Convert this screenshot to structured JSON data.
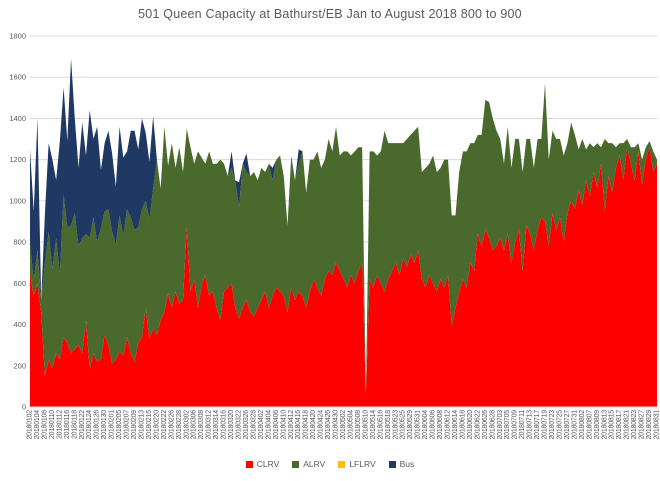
{
  "title": "501 Queen Capacity at Bathurst/EB Jan to August 2018 800 to 900",
  "chart_data": {
    "type": "area",
    "stacked": true,
    "title": "501 Queen Capacity at Bathurst/EB Jan to August 2018 800 to 900",
    "xlabel": "",
    "ylabel": "",
    "ylim": [
      0,
      1800
    ],
    "yticks": [
      0,
      200,
      400,
      600,
      800,
      1000,
      1200,
      1400,
      1600,
      1800
    ],
    "grid": true,
    "grid_color": "#D9D9D9",
    "text_color": "#595959",
    "legend_position": "bottom",
    "x_label_every": 2,
    "x": [
      "20180102",
      "20180103",
      "20180104",
      "20180105",
      "20180108",
      "20180109",
      "20180110",
      "20180111",
      "20180112",
      "20180115",
      "20180116",
      "20180117",
      "20180118",
      "20180119",
      "20180122",
      "20180123",
      "20180124",
      "20180125",
      "20180126",
      "20180129",
      "20180130",
      "20180131",
      "20180201",
      "20180202",
      "20180205",
      "20180206",
      "20180207",
      "20180208",
      "20180209",
      "20180212",
      "20180213",
      "20180214",
      "20180215",
      "20180216",
      "20180220",
      "20180221",
      "20180222",
      "20180223",
      "20180226",
      "20180227",
      "20180228",
      "20180301",
      "20180302",
      "20180305",
      "20180306",
      "20180307",
      "20180308",
      "20180309",
      "20180312",
      "20180313",
      "20180314",
      "20180315",
      "20180316",
      "20180319",
      "20180320",
      "20180321",
      "20180322",
      "20180323",
      "20180326",
      "20180327",
      "20180328",
      "20180329",
      "20180402",
      "20180403",
      "20180404",
      "20180405",
      "20180406",
      "20180409",
      "20180410",
      "20180411",
      "20180412",
      "20180413",
      "20180416",
      "20180417",
      "20180418",
      "20180419",
      "20180420",
      "20180423",
      "20180424",
      "20180425",
      "20180426",
      "20180427",
      "20180430",
      "20180501",
      "20180502",
      "20180503",
      "20180504",
      "20180507",
      "20180508",
      "20180509",
      "20180510",
      "20180511",
      "20180514",
      "20180515",
      "20180516",
      "20180517",
      "20180518",
      "20180522",
      "20180523",
      "20180524",
      "20180525",
      "20180528",
      "20180529",
      "20180530",
      "20180531",
      "20180601",
      "20180604",
      "20180605",
      "20180606",
      "20180607",
      "20180608",
      "20180611",
      "20180612",
      "20180613",
      "20180614",
      "20180615",
      "20180618",
      "20180619",
      "20180620",
      "20180621",
      "20180622",
      "20180625",
      "20180626",
      "20180627",
      "20180628",
      "20180629",
      "20180703",
      "20180704",
      "20180705",
      "20180706",
      "20180709",
      "20180710",
      "20180711",
      "20180712",
      "20180713",
      "20180716",
      "20180717",
      "20180718",
      "20180719",
      "20180720",
      "20180723",
      "20180724",
      "20180725",
      "20180726",
      "20180727",
      "20180730",
      "20180731",
      "20180801",
      "20180802",
      "20180803",
      "20180807",
      "20180808",
      "20180809",
      "20180810",
      "20180813",
      "20180814",
      "20180815",
      "20180816",
      "20180817",
      "20180820",
      "20180821",
      "20180822",
      "20180823",
      "20180824",
      "20180827",
      "20180828",
      "20180829",
      "20180830",
      "20180831"
    ],
    "series": [
      {
        "name": "CLRV",
        "color": "#FF0000",
        "values": [
          650,
          540,
          600,
          460,
          150,
          230,
          190,
          260,
          230,
          340,
          310,
          260,
          280,
          300,
          260,
          420,
          180,
          260,
          220,
          230,
          350,
          300,
          210,
          230,
          270,
          250,
          340,
          260,
          220,
          310,
          340,
          480,
          330,
          380,
          350,
          420,
          460,
          550,
          480,
          560,
          500,
          520,
          870,
          560,
          620,
          480,
          590,
          640,
          540,
          560,
          480,
          420,
          560,
          580,
          600,
          480,
          430,
          480,
          520,
          460,
          440,
          480,
          520,
          560,
          480,
          540,
          580,
          560,
          540,
          460,
          580,
          520,
          560,
          540,
          480,
          560,
          620,
          580,
          540,
          620,
          660,
          640,
          700,
          660,
          620,
          580,
          640,
          600,
          660,
          700,
          60,
          620,
          580,
          640,
          600,
          560,
          620,
          660,
          700,
          640,
          720,
          680,
          740,
          700,
          760,
          620,
          580,
          640,
          600,
          560,
          620,
          580,
          640,
          390,
          480,
          560,
          620,
          580,
          700,
          660,
          840,
          780,
          860,
          820,
          760,
          780,
          820,
          760,
          840,
          700,
          800,
          860,
          660,
          880,
          840,
          760,
          860,
          920,
          900,
          780,
          940,
          860,
          920,
          800,
          940,
          1000,
          960,
          1050,
          980,
          1100,
          1020,
          1140,
          1060,
          1180,
          950,
          1120,
          1040,
          1160,
          1220,
          1100,
          1260,
          1180,
          1100,
          1240,
          1080,
          1200,
          1260,
          1140,
          1180
        ]
      },
      {
        "name": "ALRV",
        "color": "#4A6A2D",
        "values": [
          140,
          80,
          160,
          60,
          550,
          620,
          480,
          560,
          420,
          690,
          560,
          620,
          660,
          480,
          560,
          420,
          640,
          660,
          580,
          640,
          600,
          660,
          640,
          560,
          660,
          580,
          620,
          660,
          640,
          560,
          620,
          520,
          580,
          680,
          850,
          640,
          900,
          620,
          800,
          600,
          760,
          620,
          480,
          700,
          560,
          760,
          620,
          540,
          700,
          620,
          700,
          780,
          620,
          540,
          560,
          620,
          540,
          700,
          620,
          660,
          700,
          620,
          640,
          580,
          700,
          560,
          620,
          660,
          580,
          420,
          640,
          580,
          620,
          700,
          560,
          640,
          580,
          660,
          620,
          580,
          640,
          600,
          660,
          560,
          620,
          660,
          580,
          640,
          600,
          560,
          0,
          620,
          660,
          580,
          640,
          780,
          660,
          620,
          580,
          640,
          560,
          620,
          580,
          640,
          600,
          520,
          580,
          540,
          620,
          580,
          540,
          620,
          560,
          540,
          450,
          580,
          620,
          660,
          580,
          620,
          480,
          540,
          630,
          660,
          640,
          560,
          480,
          420,
          520,
          460,
          500,
          440,
          480,
          420,
          460,
          400,
          440,
          380,
          670,
          420,
          400,
          440,
          380,
          420,
          340,
          380,
          360,
          200,
          320,
          150,
          260,
          120,
          220,
          80,
          350,
          160,
          240,
          100,
          60,
          180,
          40,
          80,
          160,
          40,
          120,
          60,
          30,
          100,
          20
        ]
      },
      {
        "name": "LFLRV",
        "color": "#FFC000",
        "values": [
          0,
          0,
          0,
          0,
          0,
          0,
          0,
          0,
          0,
          0,
          0,
          0,
          0,
          0,
          0,
          0,
          0,
          0,
          0,
          0,
          0,
          0,
          0,
          0,
          0,
          0,
          0,
          0,
          0,
          0,
          0,
          0,
          0,
          0,
          0,
          0,
          0,
          0,
          0,
          0,
          0,
          0,
          0,
          0,
          0,
          0,
          0,
          0,
          0,
          0,
          0,
          0,
          0,
          0,
          0,
          0,
          0,
          0,
          0,
          0,
          0,
          0,
          0,
          0,
          0,
          0,
          0,
          0,
          0,
          0,
          0,
          0,
          0,
          0,
          0,
          0,
          0,
          0,
          0,
          0,
          0,
          0,
          0,
          0,
          0,
          0,
          0,
          0,
          0,
          0,
          0,
          0,
          0,
          0,
          0,
          0,
          0,
          0,
          0,
          0,
          0,
          0,
          0,
          0,
          0,
          0,
          0,
          0,
          0,
          0,
          0,
          0,
          0,
          0,
          0,
          0,
          0,
          0,
          0,
          0,
          0,
          0,
          0,
          0,
          0,
          0,
          0,
          0,
          0,
          0,
          0,
          0,
          0,
          0,
          0,
          0,
          0,
          0,
          0,
          0,
          0,
          0,
          0,
          0,
          0,
          0,
          0,
          0,
          0,
          0,
          0,
          0,
          0,
          0,
          0,
          0,
          0,
          0,
          0,
          0,
          0,
          0,
          0,
          0,
          0,
          0,
          0,
          0,
          0
        ]
      },
      {
        "name": "Bus",
        "color": "#1F3864",
        "values": [
          460,
          330,
          640,
          0,
          240,
          430,
          530,
          280,
          640,
          520,
          420,
          810,
          460,
          380,
          560,
          380,
          620,
          380,
          560,
          280,
          330,
          380,
          380,
          280,
          430,
          380,
          280,
          420,
          480,
          380,
          440,
          330,
          280,
          350,
          0,
          0,
          0,
          0,
          0,
          0,
          0,
          0,
          0,
          0,
          0,
          0,
          0,
          0,
          0,
          0,
          0,
          0,
          0,
          0,
          80,
          0,
          120,
          0,
          90,
          0,
          0,
          0,
          0,
          0,
          0,
          60,
          0,
          0,
          0,
          0,
          0,
          0,
          70,
          0,
          0,
          0,
          0,
          0,
          0,
          0,
          0,
          0,
          0,
          0,
          0,
          0,
          0,
          0,
          0,
          0,
          0,
          0,
          0,
          0,
          0,
          0,
          0,
          0,
          0,
          0,
          0,
          0,
          0,
          0,
          0,
          0,
          0,
          0,
          0,
          0,
          0,
          0,
          0,
          0,
          0,
          0,
          0,
          0,
          0,
          0,
          0,
          0,
          0,
          0,
          0,
          0,
          0,
          0,
          0,
          0,
          0,
          0,
          0,
          0,
          0,
          0,
          0,
          0,
          0,
          0,
          0,
          0,
          0,
          0,
          0,
          0,
          0,
          0,
          0,
          0,
          0,
          0,
          0,
          0,
          0,
          0,
          0,
          0,
          0,
          0,
          0,
          0,
          0,
          0,
          0,
          0,
          0,
          0,
          0
        ]
      }
    ]
  },
  "legend": {
    "items": [
      {
        "label": "CLRV",
        "color": "#FF0000"
      },
      {
        "label": "ALRV",
        "color": "#4A6A2D"
      },
      {
        "label": "LFLRV",
        "color": "#FFC000"
      },
      {
        "label": "Bus",
        "color": "#1F3864"
      }
    ]
  }
}
